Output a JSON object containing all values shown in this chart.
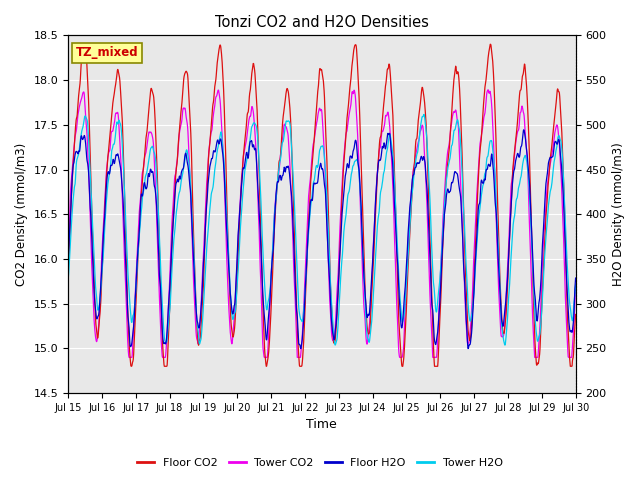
{
  "title": "Tonzi CO2 and H2O Densities",
  "xlabel": "Time",
  "ylabel_left": "CO2 Density (mmol/m3)",
  "ylabel_right": "H2O Density (mmol/m3)",
  "annotation": "TZ_mixed",
  "annotation_color": "#cc0000",
  "annotation_bg": "#ffff99",
  "ylim_left": [
    14.5,
    18.5
  ],
  "ylim_right": [
    200,
    600
  ],
  "xtick_labels": [
    "Jul 15",
    "Jul 16",
    "Jul 17",
    "Jul 18",
    "Jul 19",
    "Jul 20",
    "Jul 21",
    "Jul 22",
    "Jul 23",
    "Jul 24",
    "Jul 25",
    "Jul 26",
    "Jul 27",
    "Jul 28",
    "Jul 29",
    "Jul 30"
  ],
  "colors": {
    "floor_co2": "#dd1111",
    "tower_co2": "#ee00ee",
    "floor_h2o": "#0000cc",
    "tower_h2o": "#00ccee"
  },
  "legend_labels": [
    "Floor CO2",
    "Tower CO2",
    "Floor H2O",
    "Tower H2O"
  ],
  "bg_color": "#e8e8e8",
  "n_points": 1440,
  "seed": 7
}
